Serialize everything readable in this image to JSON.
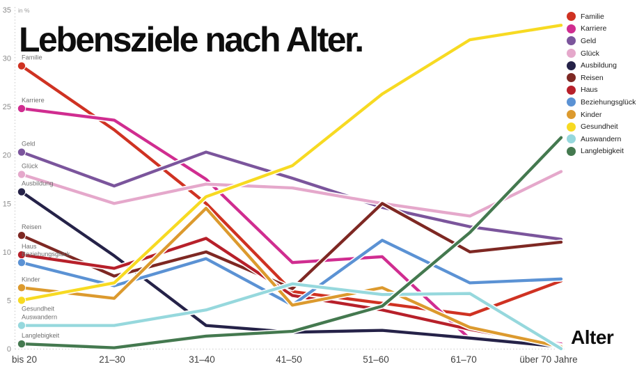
{
  "title": "Lebensziele nach Alter.",
  "unit_label": "in %",
  "x_axis_title": "Alter",
  "chart_data": {
    "type": "line",
    "title": "Lebensziele nach Alter.",
    "ylabel": "in %",
    "xlabel": "Alter",
    "ylim": [
      0,
      35
    ],
    "y_ticks": [
      0,
      5,
      10,
      15,
      20,
      25,
      30,
      35
    ],
    "grid": "dotted axis lines only",
    "legend_position": "top-right",
    "categories": [
      "bis 20",
      "21–30",
      "31–40",
      "41–50",
      "51–60",
      "61–70",
      "über 70 Jahre"
    ],
    "series": [
      {
        "name": "Familie",
        "color": "#cf3222",
        "values": [
          29.2,
          22.6,
          15.0,
          5.9,
          4.7,
          3.5,
          7.0
        ]
      },
      {
        "name": "Karriere",
        "color": "#d02d90",
        "values": [
          24.8,
          23.6,
          17.5,
          8.9,
          9.5,
          1.0,
          0.5
        ]
      },
      {
        "name": "Geld",
        "color": "#7b559c",
        "values": [
          20.3,
          16.8,
          20.3,
          17.6,
          14.6,
          12.6,
          11.3
        ]
      },
      {
        "name": "Glück",
        "color": "#e5a8cb",
        "values": [
          18.0,
          15.0,
          17.0,
          16.6,
          15.0,
          13.7,
          18.3
        ]
      },
      {
        "name": "Ausbildung",
        "color": "#252248",
        "values": [
          16.2,
          9.6,
          2.4,
          1.7,
          1.9,
          1.1,
          0.2
        ]
      },
      {
        "name": "Reisen",
        "color": "#7e2823",
        "values": [
          11.7,
          7.5,
          10.0,
          6.2,
          15.0,
          10.0,
          11.0
        ]
      },
      {
        "name": "Haus",
        "color": "#b7202a",
        "values": [
          9.7,
          8.3,
          11.4,
          5.5,
          4.0,
          2.0,
          0.3
        ]
      },
      {
        "name": "Beziehungsglück",
        "color": "#5b92d4",
        "values": [
          8.9,
          6.5,
          9.3,
          4.5,
          11.2,
          6.8,
          7.2
        ]
      },
      {
        "name": "Kinder",
        "color": "#dc9a2e",
        "values": [
          6.3,
          5.2,
          14.5,
          4.5,
          6.3,
          2.2,
          0.2
        ]
      },
      {
        "name": "Gesundheit",
        "color": "#f7da22",
        "values": [
          5.0,
          6.8,
          15.7,
          18.9,
          26.3,
          31.9,
          33.4
        ],
        "label_below": true
      },
      {
        "name": "Auswandern",
        "color": "#96d8dd",
        "values": [
          2.4,
          2.4,
          4.0,
          6.7,
          5.6,
          5.7,
          0.0
        ]
      },
      {
        "name": "Langlebigkeit",
        "color": "#44794f",
        "values": [
          0.5,
          0.1,
          1.3,
          1.8,
          4.4,
          12.0,
          21.8
        ]
      }
    ]
  }
}
